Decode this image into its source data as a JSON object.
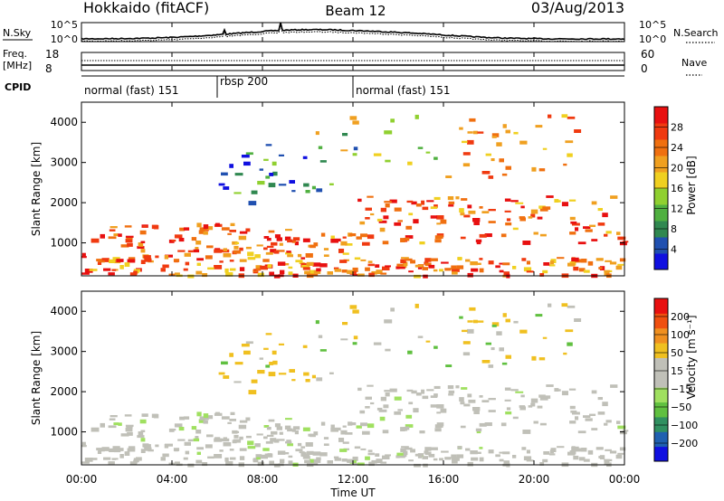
{
  "header": {
    "station": "Hokkaido (fitACF)",
    "beam": "Beam 12",
    "date": "03/Aug/2013"
  },
  "top_panels": {
    "nsky_label": "N.Sky",
    "nsky_ticks": [
      "10^5",
      "10^0"
    ],
    "nsearch_label": "N.Search",
    "freq_label_1": "Freq.",
    "freq_label_2": "[MHz]",
    "freq_ticks": [
      "18",
      "8"
    ],
    "nave_label": "Nave",
    "nave_ticks": [
      "60",
      "0"
    ],
    "cpid_label": "CPID",
    "cpid_segments": [
      {
        "label": "normal (fast) 151",
        "start_hr": 0,
        "end_hr": 6
      },
      {
        "label": "rbsp 200",
        "start_hr": 6,
        "end_hr": 12
      },
      {
        "label": "normal (fast) 151",
        "start_hr": 12,
        "end_hr": 24
      }
    ]
  },
  "chart_data": [
    {
      "type": "heatmap",
      "name": "power",
      "xlabel": "",
      "ylabel": "Slant Range [km]",
      "xlim": [
        0,
        24
      ],
      "ylim": [
        180,
        4500
      ],
      "yticks": [
        1000,
        2000,
        3000,
        4000
      ],
      "colorbar": {
        "label": "Power [dB]",
        "ticks": [
          "28",
          "24",
          "20",
          "16",
          "12",
          "8",
          "4"
        ],
        "colors": [
          "#1010e0",
          "#2050b0",
          "#308850",
          "#50b040",
          "#90d030",
          "#f0d020",
          "#f0a020",
          "#f07010",
          "#f03a10",
          "#e81010"
        ]
      }
    },
    {
      "type": "heatmap",
      "name": "velocity",
      "xlabel": "Time UT",
      "ylabel": "Slant Range [km]",
      "xlim": [
        0,
        24
      ],
      "ylim": [
        180,
        4500
      ],
      "yticks": [
        1000,
        2000,
        3000,
        4000
      ],
      "xticks": [
        "00:00",
        "04:00",
        "08:00",
        "12:00",
        "16:00",
        "20:00",
        "00:00"
      ],
      "colorbar": {
        "label": "Velocity [m s⁻¹]",
        "ticks": [
          "200",
          "100",
          "50",
          "15",
          "−15",
          "−50",
          "−100",
          "−200"
        ],
        "colors": [
          "#1010e0",
          "#2060b0",
          "#309060",
          "#60c040",
          "#a0e060",
          "#c0c0b8",
          "#c0c0b8",
          "#f0c020",
          "#f09020",
          "#f05010",
          "#e81010"
        ]
      }
    }
  ]
}
